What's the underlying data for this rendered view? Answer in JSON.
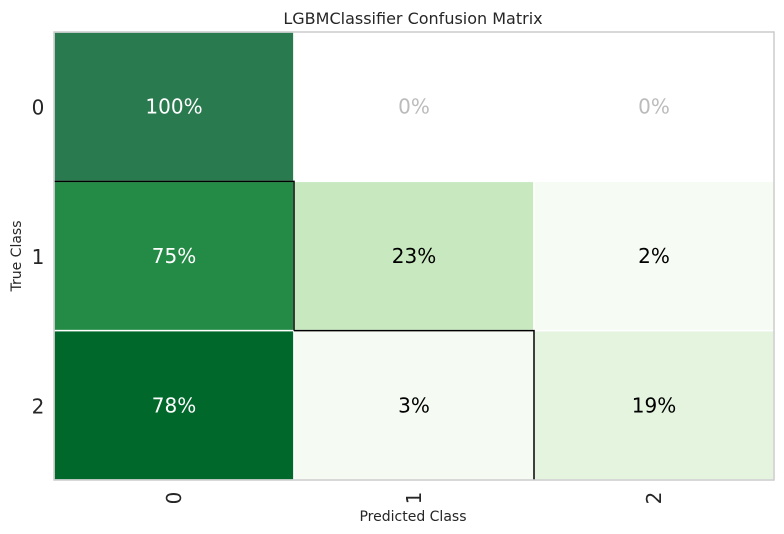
{
  "chart_data": {
    "type": "heatmap",
    "title": "LGBMClassifier Confusion Matrix",
    "xlabel": "Predicted Class",
    "ylabel": "True Class",
    "x_categories": [
      "0",
      "1",
      "2"
    ],
    "y_categories": [
      "0",
      "1",
      "2"
    ],
    "values": [
      [
        100,
        0,
        0
      ],
      [
        75,
        23,
        2
      ],
      [
        78,
        3,
        19
      ]
    ],
    "cell_labels": [
      [
        "100%",
        "0%",
        "0%"
      ],
      [
        "75%",
        "23%",
        "2%"
      ],
      [
        "78%",
        "3%",
        "19%"
      ]
    ],
    "cell_colors": [
      [
        "#2a7a4f",
        "#ffffff",
        "#ffffff"
      ],
      [
        "#238b45",
        "#c8e9c0",
        "#f6fbf3"
      ],
      [
        "#00682a",
        "#f5fbf2",
        "#e4f4df"
      ]
    ],
    "label_colors": [
      [
        "#ffffff",
        "#bbbbbb",
        "#bbbbbb"
      ],
      [
        "#ffffff",
        "#000000",
        "#000000"
      ],
      [
        "#ffffff",
        "#000000",
        "#000000"
      ]
    ],
    "highlight_border_color": "#000000",
    "grid": false
  }
}
